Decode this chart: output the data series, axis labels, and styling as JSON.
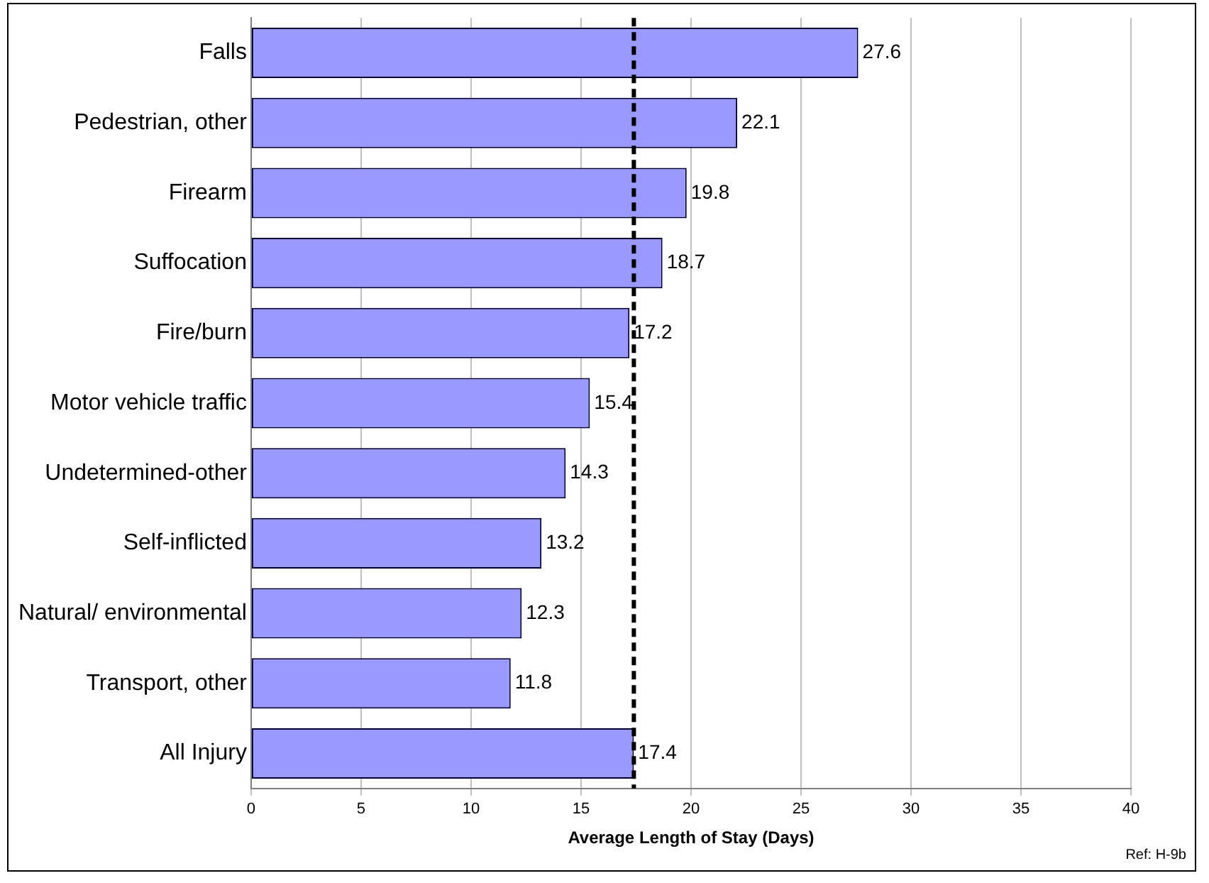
{
  "chart_data": {
    "type": "bar",
    "orientation": "horizontal",
    "categories": [
      "Falls",
      "Pedestrian, other",
      "Firearm",
      "Suffocation",
      "Fire/burn",
      "Motor vehicle traffic",
      "Undetermined-other",
      "Self-inflicted",
      "Natural/ environmental",
      "Transport, other",
      "All Injury"
    ],
    "values": [
      27.6,
      22.1,
      19.8,
      18.7,
      17.2,
      15.4,
      14.3,
      13.2,
      12.3,
      11.8,
      17.4
    ],
    "color": "#9999ff",
    "xlim": [
      0,
      40
    ],
    "xticks": [
      0,
      5,
      10,
      15,
      20,
      25,
      30,
      35,
      40
    ],
    "xlabel": "Average Length of Stay (Days)",
    "annotations": [
      "Ref: H-9b"
    ],
    "ref_lines": [
      {
        "axis": "x",
        "value": 17.4,
        "color": "#000000",
        "line_style": "dashed"
      }
    ],
    "data_labels": true,
    "grid": "x",
    "legend": false
  }
}
